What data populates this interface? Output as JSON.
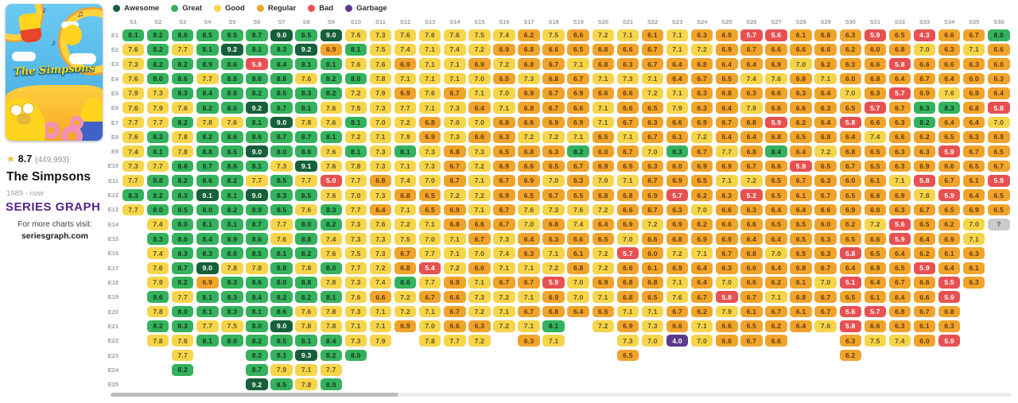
{
  "sidebar": {
    "poster_title": "The Simpsons",
    "rating": {
      "score": "8.7",
      "votes": "(449,993)"
    },
    "title": "The Simpsons",
    "years": "1989 - now",
    "logo": "SERIES GRAPH",
    "footer_line1": "For more charts visit:",
    "footer_line2": "seriesgraph.com"
  },
  "legend": {
    "position": "top",
    "items": [
      {
        "label": "Awesome",
        "color": "#16603a",
        "text": "#ffffff",
        "min": 9
      },
      {
        "label": "Great",
        "color": "#34b25c",
        "text": "#17331f",
        "min": 8
      },
      {
        "label": "Good",
        "color": "#f6d54b",
        "text": "#66531a",
        "min": 7
      },
      {
        "label": "Regular",
        "color": "#f0a42c",
        "text": "#653a06",
        "min": 6
      },
      {
        "label": "Bad",
        "color": "#e85151",
        "text": "#ffffff",
        "min": 4.1
      },
      {
        "label": "Garbage",
        "color": "#5b3a8c",
        "text": "#ffffff",
        "min": 0
      }
    ]
  },
  "chart_data": {
    "type": "heatmap",
    "categories": [
      "S1",
      "S2",
      "S3",
      "S4",
      "S5",
      "S6",
      "S7",
      "S8",
      "S9",
      "S10",
      "S11",
      "S12",
      "S13",
      "S14",
      "S15",
      "S16",
      "S17",
      "S18",
      "S19",
      "S20",
      "S21",
      "S22",
      "S23",
      "S24",
      "S25",
      "S26",
      "S27",
      "S28",
      "S29",
      "S30",
      "S31",
      "S32",
      "S33",
      "S34",
      "S35",
      "S36"
    ],
    "rows": [
      "E1",
      "E2",
      "E3",
      "E4",
      "E5",
      "E6",
      "E7",
      "E8",
      "E9",
      "E10",
      "E11",
      "E12",
      "E13",
      "E14",
      "E15",
      "E16",
      "E17",
      "E18",
      "E19",
      "E20",
      "E21",
      "E22",
      "E23",
      "E24",
      "E25"
    ],
    "unknown": {
      "value": "?",
      "color": "#c8cacc",
      "text": "#54575c"
    },
    "series": [
      {
        "name": "S1",
        "values": [
          "8.1",
          "7.6",
          "7.3",
          "7.6",
          "7.9",
          "7.6",
          "7.7",
          "7.6",
          "7.4",
          "7.3",
          "7.7",
          "8.3",
          "7.7"
        ]
      },
      {
        "name": "S2",
        "values": [
          "8.2",
          "8.2",
          "8.2",
          "8.0",
          "7.3",
          "7.9",
          "7.7",
          "8.3",
          "8.1",
          "7.7",
          "8.8",
          "8.2",
          "8.0",
          "7.4",
          "8.3",
          "7.4",
          "7.6",
          "7.9",
          "8.6",
          "7.8",
          "8.2",
          "7.8"
        ]
      },
      {
        "name": "S3",
        "values": [
          "8.6",
          "7.7",
          "8.2",
          "8.6",
          "8.3",
          "7.6",
          "8.2",
          "7.8",
          "7.8",
          "8.8",
          "8.2",
          "8.3",
          "8.5",
          "8.0",
          "8.0",
          "8.3",
          "8.7",
          "8.2",
          "7.7",
          "8.0",
          "8.3",
          "7.6",
          "7.7",
          "8.2"
        ]
      },
      {
        "name": "S4",
        "values": [
          "8.5",
          "8.1",
          "8.9",
          "7.7",
          "8.4",
          "8.2",
          "7.8",
          "8.2",
          "8.8",
          "8.7",
          "8.6",
          "9.1",
          "8.0",
          "8.1",
          "8.4",
          "8.3",
          "9.0",
          "6.9",
          "8.1",
          "8.1",
          "7.7",
          "8.1"
        ]
      },
      {
        "name": "S5",
        "values": [
          "8.5",
          "9.2",
          "8.6",
          "8.8",
          "8.8",
          "8.0",
          "7.6",
          "8.6",
          "8.5",
          "8.6",
          "8.2",
          "8.1",
          "8.2",
          "8.1",
          "8.9",
          "8.6",
          "7.8",
          "8.3",
          "8.3",
          "8.3",
          "7.5",
          "8.0"
        ]
      },
      {
        "name": "S6",
        "values": [
          "8.7",
          "8.1",
          "5.8",
          "8.6",
          "8.2",
          "9.2",
          "8.1",
          "8.6",
          "9.0",
          "8.1",
          "7.7",
          "9.0",
          "8.9",
          "8.7",
          "8.6",
          "8.5",
          "7.8",
          "8.6",
          "8.4",
          "8.1",
          "8.0",
          "8.2",
          "8.2",
          "8.7",
          "9.2"
        ]
      },
      {
        "name": "S7",
        "values": [
          "9.0",
          "8.3",
          "8.4",
          "8.8",
          "8.5",
          "8.7",
          "9.0",
          "8.7",
          "8.0",
          "7.3",
          "8.5",
          "8.3",
          "8.5",
          "7.7",
          "7.6",
          "8.1",
          "8.8",
          "8.0",
          "8.2",
          "8.6",
          "9.0",
          "8.5",
          "8.1",
          "7.9",
          "8.5"
        ]
      },
      {
        "name": "S8",
        "values": [
          "8.5",
          "9.2",
          "8.1",
          "7.6",
          "8.3",
          "8.1",
          "7.8",
          "8.7",
          "8.6",
          "9.1",
          "7.7",
          "8.5",
          "7.6",
          "8.0",
          "8.8",
          "8.2",
          "7.8",
          "8.8",
          "8.2",
          "7.6",
          "7.8",
          "8.1",
          "9.3",
          "7.1",
          "7.8"
        ]
      },
      {
        "name": "S9",
        "values": [
          "9.0",
          "6.9",
          "8.1",
          "8.2",
          "8.2",
          "7.6",
          "7.6",
          "8.1",
          "7.6",
          "7.6",
          "5.0",
          "7.6",
          "8.3",
          "8.2",
          "7.4",
          "7.6",
          "8.0",
          "7.8",
          "8.1",
          "7.8",
          "7.8",
          "8.4",
          "8.2",
          "7.7",
          "8.0"
        ]
      },
      {
        "name": "S10",
        "values": [
          "7.6",
          "8.1",
          "7.6",
          "8.0",
          "7.2",
          "7.5",
          "8.1",
          "7.2",
          "8.1",
          "7.8",
          "7.7",
          "7.0",
          "7.7",
          "7.3",
          "7.3",
          "7.5",
          "7.7",
          "7.3",
          "7.6",
          "7.3",
          "7.1",
          "7.3",
          "8.0"
        ]
      },
      {
        "name": "S11",
        "values": [
          "7.3",
          "7.5",
          "7.6",
          "7.8",
          "7.9",
          "7.3",
          "7.0",
          "7.1",
          "7.3",
          "7.3",
          "6.8",
          "7.3",
          "6.4",
          "7.6",
          "7.3",
          "7.3",
          "7.2",
          "7.4",
          "6.6",
          "7.1",
          "7.1",
          "7.9"
        ]
      },
      {
        "name": "S12",
        "values": [
          "7.6",
          "7.4",
          "6.9",
          "7.1",
          "6.9",
          "7.7",
          "7.2",
          "7.9",
          "8.1",
          "7.1",
          "7.4",
          "6.8",
          "7.1",
          "7.2",
          "7.5",
          "6.7",
          "6.8",
          "8.6",
          "7.2",
          "7.2",
          "6.9"
        ]
      },
      {
        "name": "S13",
        "values": [
          "7.6",
          "7.1",
          "7.1",
          "7.1",
          "7.6",
          "7.1",
          "6.8",
          "6.9",
          "7.3",
          "7.3",
          "7.0",
          "6.5",
          "6.5",
          "7.1",
          "7.0",
          "7.7",
          "5.4",
          "7.7",
          "6.7",
          "7.1",
          "7.0",
          "7.8"
        ]
      },
      {
        "name": "S14",
        "values": [
          "7.6",
          "7.4",
          "7.1",
          "7.1",
          "6.7",
          "7.3",
          "7.0",
          "7.3",
          "6.8",
          "6.7",
          "6.7",
          "7.2",
          "6.9",
          "6.8",
          "7.1",
          "7.1",
          "7.2",
          "6.9",
          "6.6",
          "6.7",
          "6.6",
          "7.7"
        ]
      },
      {
        "name": "S15",
        "values": [
          "7.5",
          "7.2",
          "6.9",
          "7.0",
          "7.1",
          "6.4",
          "7.0",
          "6.6",
          "7.3",
          "7.2",
          "7.1",
          "7.2",
          "7.1",
          "6.6",
          "6.7",
          "7.0",
          "6.6",
          "7.1",
          "7.3",
          "7.2",
          "6.3",
          "7.2"
        ]
      },
      {
        "name": "S16",
        "values": [
          "7.4",
          "6.9",
          "7.2",
          "6.5",
          "7.0",
          "7.1",
          "6.8",
          "6.3",
          "6.5",
          "6.9",
          "6.7",
          "6.9",
          "6.7",
          "6.7",
          "7.3",
          "7.4",
          "7.1",
          "6.7",
          "7.2",
          "7.1",
          "7.2"
        ]
      },
      {
        "name": "S17",
        "values": [
          "6.2",
          "6.8",
          "6.8",
          "7.3",
          "6.9",
          "6.8",
          "6.6",
          "7.2",
          "6.8",
          "6.6",
          "6.9",
          "6.5",
          "7.6",
          "7.0",
          "6.4",
          "6.3",
          "7.1",
          "6.7",
          "7.1",
          "6.7",
          "7.1",
          "6.3"
        ]
      },
      {
        "name": "S18",
        "values": [
          "7.5",
          "6.6",
          "6.7",
          "6.8",
          "6.7",
          "6.7",
          "6.9",
          "7.2",
          "6.3",
          "6.5",
          "7.0",
          "6.7",
          "7.3",
          "6.8",
          "6.3",
          "7.1",
          "7.2",
          "5.9",
          "6.9",
          "6.8",
          "8.1",
          "7.1"
        ]
      },
      {
        "name": "S19",
        "values": [
          "6.6",
          "6.5",
          "7.1",
          "6.7",
          "6.9",
          "6.6",
          "6.9",
          "7.1",
          "8.2",
          "6.7",
          "6.3",
          "6.5",
          "7.6",
          "7.4",
          "6.6",
          "6.1",
          "6.8",
          "7.0",
          "7.0",
          "6.4"
        ]
      },
      {
        "name": "S20",
        "values": [
          "7.2",
          "6.8",
          "6.8",
          "7.1",
          "6.6",
          "7.1",
          "7.1",
          "6.5",
          "6.0",
          "6.9",
          "7.0",
          "6.8",
          "7.2",
          "6.4",
          "6.5",
          "7.2",
          "7.2",
          "6.9",
          "7.1",
          "6.5",
          "7.2"
        ]
      },
      {
        "name": "S21",
        "values": [
          "7.1",
          "6.6",
          "6.3",
          "7.3",
          "6.6",
          "6.6",
          "6.7",
          "7.1",
          "6.7",
          "6.5",
          "7.1",
          "6.8",
          "6.6",
          "6.9",
          "7.0",
          "5.7",
          "6.6",
          "6.8",
          "6.8",
          "7.1",
          "6.9",
          "7.3",
          "6.5"
        ]
      },
      {
        "name": "S22",
        "values": [
          "6.1",
          "6.7",
          "6.7",
          "7.1",
          "7.2",
          "6.5",
          "6.3",
          "6.7",
          "7.0",
          "6.3",
          "6.7",
          "6.9",
          "6.7",
          "7.2",
          "6.6",
          "6.0",
          "6.1",
          "6.8",
          "6.5",
          "7.1",
          "7.3",
          "7.0"
        ]
      },
      {
        "name": "S23",
        "values": [
          "7.1",
          "7.1",
          "6.4",
          "6.4",
          "7.1",
          "7.9",
          "6.6",
          "6.1",
          "8.3",
          "6.0",
          "6.9",
          "5.7",
          "6.3",
          "6.9",
          "6.8",
          "7.2",
          "6.9",
          "7.1",
          "7.6",
          "6.7",
          "6.6",
          "4.0"
        ]
      },
      {
        "name": "S24",
        "values": [
          "6.3",
          "7.2",
          "6.8",
          "6.7",
          "6.3",
          "6.3",
          "6.9",
          "7.2",
          "6.7",
          "6.9",
          "6.5",
          "6.2",
          "7.0",
          "6.2",
          "6.9",
          "7.1",
          "6.4",
          "6.4",
          "6.7",
          "6.2",
          "7.1",
          "7.0"
        ]
      },
      {
        "name": "S25",
        "values": [
          "6.9",
          "6.9",
          "6.4",
          "6.5",
          "6.8",
          "6.4",
          "6.7",
          "6.4",
          "7.7",
          "6.9",
          "7.1",
          "6.3",
          "6.6",
          "6.6",
          "6.9",
          "6.7",
          "6.3",
          "7.0",
          "5.8",
          "7.9",
          "6.6",
          "6.6"
        ]
      },
      {
        "name": "S26",
        "values": [
          "5.7",
          "6.7",
          "6.4",
          "7.4",
          "6.3",
          "7.9",
          "6.8",
          "6.4",
          "6.8",
          "6.7",
          "7.2",
          "5.2",
          "6.3",
          "6.6",
          "6.4",
          "6.8",
          "6.6",
          "6.6",
          "6.7",
          "6.1",
          "6.5",
          "6.7"
        ]
      },
      {
        "name": "S27",
        "values": [
          "5.6",
          "6.6",
          "6.9",
          "7.6",
          "6.6",
          "6.6",
          "5.9",
          "6.8",
          "8.4",
          "6.6",
          "6.5",
          "6.5",
          "6.4",
          "6.5",
          "6.4",
          "7.0",
          "6.4",
          "6.2",
          "7.1",
          "6.7",
          "6.2",
          "6.6"
        ]
      },
      {
        "name": "S28",
        "values": [
          "6.1",
          "6.6",
          "7.0",
          "6.8",
          "6.3",
          "6.6",
          "6.2",
          "6.5",
          "6.4",
          "5.9",
          "6.7",
          "6.1",
          "6.4",
          "6.5",
          "6.5",
          "6.5",
          "6.8",
          "6.1",
          "6.8",
          "6.1",
          "6.4"
        ]
      },
      {
        "name": "S29",
        "values": [
          "6.8",
          "6.6",
          "6.2",
          "7.1",
          "6.4",
          "6.3",
          "6.4",
          "6.8",
          "7.2",
          "6.5",
          "6.3",
          "6.7",
          "6.6",
          "6.0",
          "6.3",
          "6.3",
          "6.7",
          "7.0",
          "6.7",
          "6.7",
          "7.6"
        ]
      },
      {
        "name": "S30",
        "values": [
          "6.3",
          "6.2",
          "6.3",
          "6.0",
          "7.0",
          "6.5",
          "5.8",
          "6.4",
          "6.8",
          "6.7",
          "6.0",
          "6.5",
          "6.9",
          "6.2",
          "6.5",
          "5.8",
          "6.4",
          "5.1",
          "6.5",
          "5.6",
          "5.8",
          "6.3",
          "6.2"
        ]
      },
      {
        "name": "S31",
        "values": [
          "5.9",
          "6.0",
          "6.6",
          "6.8",
          "6.3",
          "5.7",
          "6.6",
          "7.4",
          "6.5",
          "6.5",
          "6.1",
          "6.6",
          "6.0",
          "7.2",
          "6.6",
          "6.5",
          "6.9",
          "6.4",
          "6.1",
          "5.7",
          "6.6",
          "7.5"
        ]
      },
      {
        "name": "S32",
        "values": [
          "6.5",
          "6.8",
          "5.8",
          "6.4",
          "5.7",
          "6.7",
          "6.3",
          "6.6",
          "6.3",
          "6.3",
          "7.1",
          "6.9",
          "6.3",
          "5.6",
          "5.9",
          "6.4",
          "6.5",
          "6.7",
          "6.4",
          "6.8",
          "6.3",
          "7.4"
        ]
      },
      {
        "name": "S33",
        "values": [
          "4.3",
          "7.0",
          "6.6",
          "6.7",
          "6.9",
          "8.3",
          "8.2",
          "6.2",
          "6.3",
          "6.9",
          "5.8",
          "7.8",
          "6.7",
          "6.5",
          "6.4",
          "6.2",
          "5.9",
          "6.6",
          "6.6",
          "6.7",
          "6.1",
          "6.0"
        ]
      },
      {
        "name": "S34",
        "values": [
          "6.6",
          "6.3",
          "6.6",
          "6.4",
          "7.6",
          "8.3",
          "6.4",
          "6.5",
          "5.9",
          "6.6",
          "6.7",
          "5.9",
          "6.5",
          "6.2",
          "6.9",
          "6.1",
          "6.4",
          "5.5",
          "5.9",
          "6.8",
          "6.3",
          "5.9"
        ]
      },
      {
        "name": "S35",
        "values": [
          "6.7",
          "7.1",
          "6.3",
          "6.0",
          "6.9",
          "6.8",
          "6.4",
          "6.3",
          "6.7",
          "6.5",
          "6.1",
          "6.4",
          "6.9",
          "7.0",
          "7.1",
          "6.3",
          "6.1",
          "6.3"
        ]
      },
      {
        "name": "S36",
        "values": [
          "8.0",
          "6.6",
          "6.0",
          "6.3",
          "6.4",
          "5.8",
          "7.0",
          "6.9",
          "6.5",
          "6.7",
          "5.9",
          "6.5",
          "6.5",
          "?"
        ]
      }
    ]
  }
}
